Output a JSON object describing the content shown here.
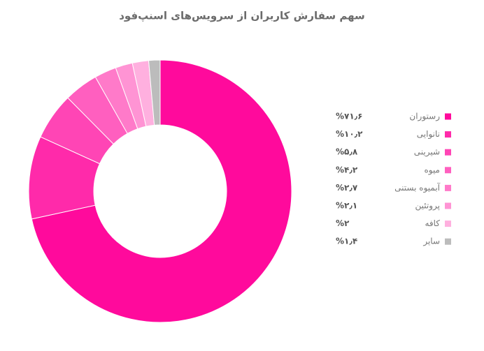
{
  "chart_data": {
    "type": "donut",
    "title": "سهم سفارش کاربران از سرویس‌های اسنپ‌فود",
    "categories": [
      "رستوران",
      "نانوایی",
      "شیرینی",
      "میوه",
      "آبمیوه بستنی",
      "پروتئین",
      "کافه",
      "سایر"
    ],
    "values": [
      71.6,
      10.2,
      5.8,
      4.2,
      2.7,
      2.1,
      2,
      1.4
    ],
    "value_labels": [
      "%۷۱٫۶",
      "%۱۰٫۲",
      "%۵٫۸",
      "%۴٫۲",
      "%۲٫۷",
      "%۲٫۱",
      "%۲",
      "%۱٫۴"
    ],
    "colors": [
      "#ff0a9c",
      "#ff2aaa",
      "#ff45b5",
      "#ff5fbf",
      "#ff7ac9",
      "#ff94d4",
      "#ffb0df",
      "#bcbcbc"
    ]
  }
}
